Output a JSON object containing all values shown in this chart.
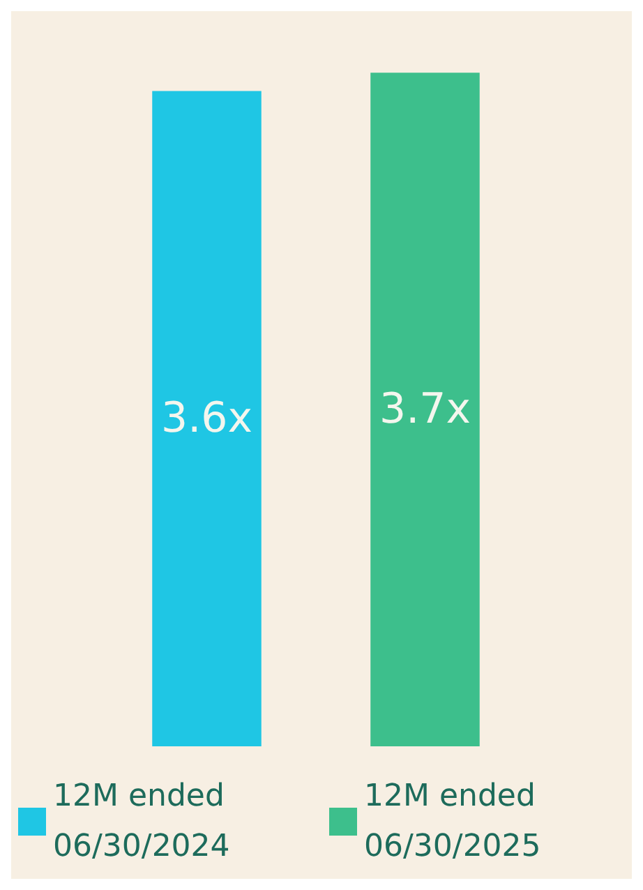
{
  "chart_data": {
    "type": "bar",
    "categories": [
      null,
      null
    ],
    "stacked": true,
    "series": [
      {
        "name": "12M ended 06/30/2024",
        "color": "#1fc6e4",
        "values": [
          3.6,
          null
        ],
        "value_labels": [
          "3.6x",
          null
        ]
      },
      {
        "name": "12M ended 06/30/2025",
        "color": "#3dbf8c",
        "values": [
          null,
          3.7
        ],
        "value_labels": [
          null,
          "3.7x"
        ]
      }
    ],
    "legend": "bottom"
  }
}
